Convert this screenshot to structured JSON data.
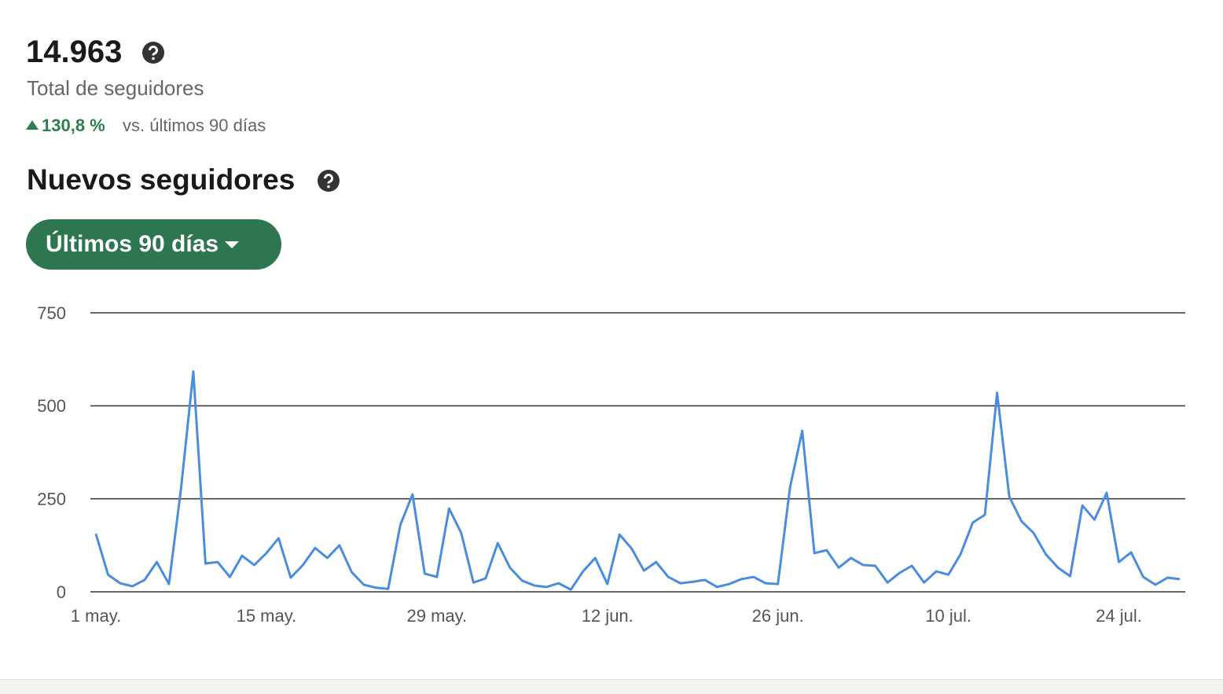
{
  "header": {
    "total": "14.963",
    "total_label": "Total de seguidores",
    "change": "130,8 %",
    "change_label": "vs. últimos 90 días"
  },
  "section_title": "Nuevos seguidores",
  "range_button": "Últimos 90 días",
  "chart_data": {
    "type": "line",
    "categories": [
      "1 may.",
      null,
      null,
      null,
      null,
      null,
      null,
      null,
      null,
      null,
      null,
      null,
      null,
      null,
      "15 may.",
      null,
      null,
      null,
      null,
      null,
      null,
      null,
      null,
      null,
      null,
      null,
      null,
      null,
      "29 may.",
      null,
      null,
      null,
      null,
      null,
      null,
      null,
      null,
      null,
      null,
      null,
      null,
      null,
      "12 jun.",
      null,
      null,
      null,
      null,
      null,
      null,
      null,
      null,
      null,
      null,
      null,
      null,
      null,
      "26 jun.",
      null,
      null,
      null,
      null,
      null,
      null,
      null,
      null,
      null,
      null,
      null,
      null,
      null,
      "10 jul.",
      null,
      null,
      null,
      null,
      null,
      null,
      null,
      null,
      null,
      null,
      null,
      null,
      null,
      "24 jul.",
      null,
      null,
      null,
      null,
      null
    ],
    "values": [
      156,
      46,
      23,
      15,
      32,
      80,
      21,
      280,
      592,
      76,
      80,
      40,
      97,
      72,
      104,
      144,
      38,
      72,
      118,
      91,
      125,
      53,
      19,
      11,
      8,
      180,
      262,
      49,
      40,
      224,
      158,
      25,
      36,
      131,
      65,
      30,
      17,
      13,
      23,
      6,
      55,
      91,
      21,
      154,
      116,
      57,
      80,
      40,
      23,
      27,
      32,
      13,
      21,
      34,
      40,
      23,
      21,
      281,
      433,
      104,
      112,
      65,
      91,
      72,
      70,
      25,
      51,
      70,
      25,
      55,
      46,
      101,
      186,
      207,
      535,
      256,
      190,
      158,
      101,
      65,
      42,
      232,
      194,
      266,
      80,
      106,
      40,
      19,
      38,
      34
    ],
    "color": "#4a8ddc",
    "ylim": [
      0,
      750
    ],
    "yticks": [
      0,
      250,
      500,
      750
    ],
    "grid": true
  }
}
